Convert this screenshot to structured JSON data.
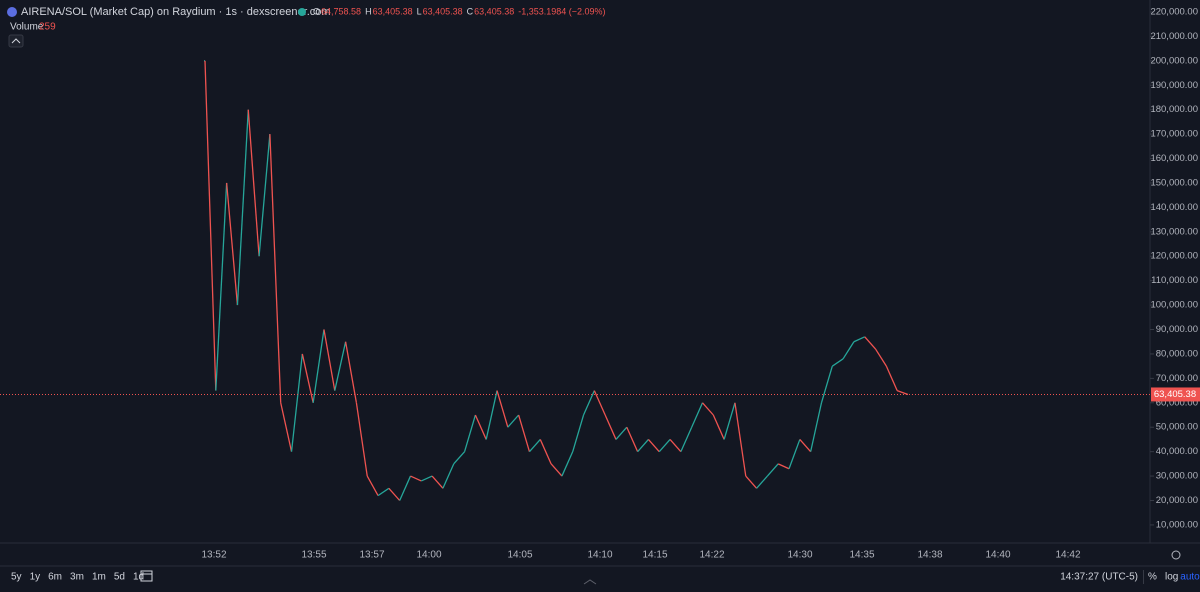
{
  "chart_data": {
    "type": "line",
    "title": "AIRENA/SOL (Market Cap) on Raydium · 1s · dexscreener.com",
    "ohlc": [
      {
        "key": "O",
        "value": "64,758.58"
      },
      {
        "key": "H",
        "value": "63,405.38"
      },
      {
        "key": "L",
        "value": "63,405.38"
      },
      {
        "key": "C",
        "value": "63,405.38"
      }
    ],
    "change": "-1,353.1984 (−2.09%)",
    "volume_label": "Volume",
    "volume_value": "259",
    "up_color": "#26a69a",
    "down_color": "#ef5350",
    "values": [
      200000,
      65000,
      150000,
      100000,
      180000,
      120000,
      170000,
      60000,
      40000,
      80000,
      60000,
      90000,
      65000,
      85000,
      60000,
      30000,
      22000,
      25000,
      20000,
      30000,
      28000,
      30000,
      25000,
      35000,
      40000,
      55000,
      45000,
      65000,
      50000,
      55000,
      40000,
      45000,
      35000,
      30000,
      40000,
      55000,
      65000,
      55000,
      45000,
      50000,
      40000,
      45000,
      40000,
      45000,
      40000,
      50000,
      60000,
      55000,
      45000,
      60000,
      30000,
      25000,
      30000,
      35000,
      33000,
      45000,
      40000,
      60000,
      75000,
      78000,
      85000,
      87000,
      82000,
      75000,
      65000,
      63405.38
    ],
    "last_price": {
      "value": 63405.38,
      "label": "63,405.38"
    },
    "ylim": [
      2600,
      224900
    ],
    "yticks": [
      {
        "value": 220000,
        "label": "220,000.00"
      },
      {
        "value": 210000,
        "label": "210,000.00"
      },
      {
        "value": 200000,
        "label": "200,000.00"
      },
      {
        "value": 190000,
        "label": "190,000.00"
      },
      {
        "value": 180000,
        "label": "180,000.00"
      },
      {
        "value": 170000,
        "label": "170,000.00"
      },
      {
        "value": 160000,
        "label": "160,000.00"
      },
      {
        "value": 150000,
        "label": "150,000.00"
      },
      {
        "value": 140000,
        "label": "140,000.00"
      },
      {
        "value": 130000,
        "label": "130,000.00"
      },
      {
        "value": 120000,
        "label": "120,000.00"
      },
      {
        "value": 110000,
        "label": "110,000.00"
      },
      {
        "value": 100000,
        "label": "100,000.00"
      },
      {
        "value": 90000,
        "label": "90,000.00"
      },
      {
        "value": 80000,
        "label": "80,000.00"
      },
      {
        "value": 70000,
        "label": "70,000.00"
      },
      {
        "value": 60000,
        "label": "60,000.00"
      },
      {
        "value": 50000,
        "label": "50,000.00"
      },
      {
        "value": 40000,
        "label": "40,000.00"
      },
      {
        "value": 30000,
        "label": "30,000.00"
      },
      {
        "value": 20000,
        "label": "20,000.00"
      },
      {
        "value": 10000,
        "label": "10,000.00"
      }
    ],
    "xticks": [
      "13:52",
      "13:55",
      "13:57",
      "14:00",
      "14:05",
      "14:10",
      "14:15",
      "14:22",
      "14:30",
      "14:35",
      "14:38",
      "14:40",
      "14:42"
    ],
    "ranges": [
      "5y",
      "1y",
      "6m",
      "3m",
      "1m",
      "5d",
      "1d"
    ],
    "clock": "14:37:27 (UTC-5)",
    "scale_options": [
      "%",
      "log",
      "auto"
    ]
  }
}
